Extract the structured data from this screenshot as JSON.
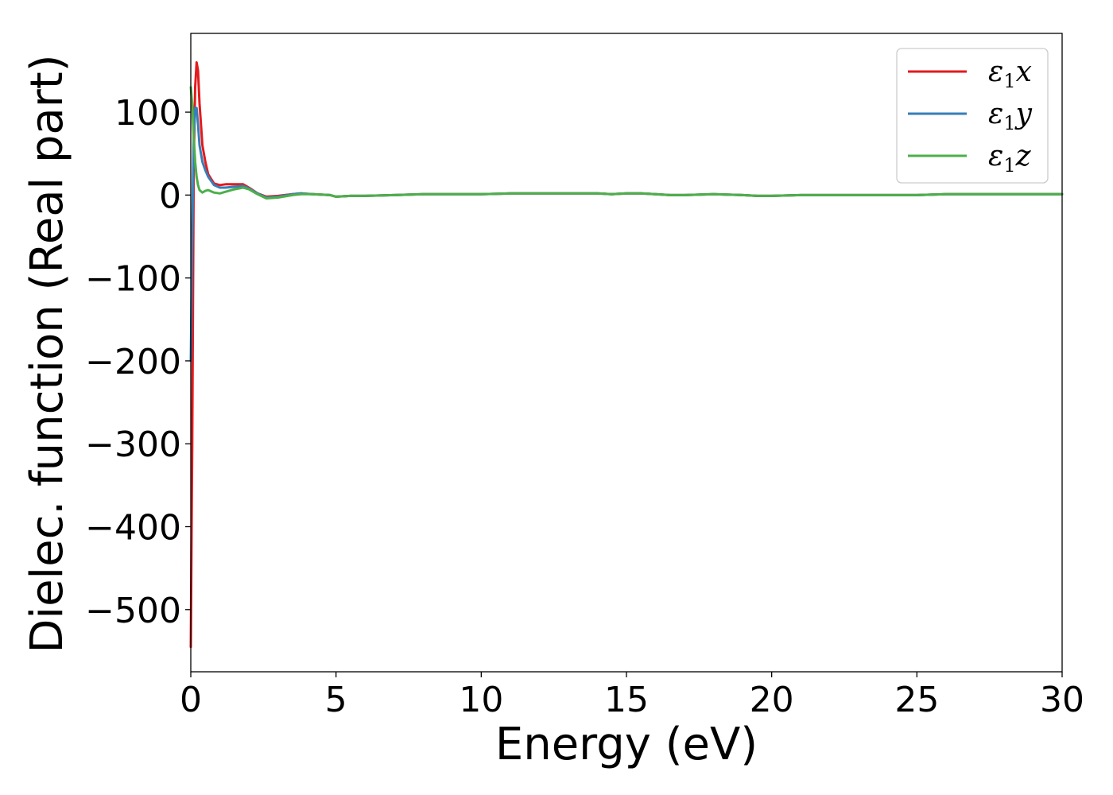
{
  "chart_data": {
    "type": "line",
    "title": "",
    "xlabel": "Energy (eV)",
    "ylabel": "Dielec. function (Real part)",
    "xlim": [
      0,
      30
    ],
    "ylim": [
      -575,
      195
    ],
    "xticks": [
      0,
      5,
      10,
      15,
      20,
      25,
      30
    ],
    "xtick_labels": [
      "0",
      "5",
      "10",
      "15",
      "20",
      "25",
      "30"
    ],
    "yticks": [
      100,
      0,
      -100,
      -200,
      -300,
      -400,
      -500
    ],
    "ytick_labels": [
      "100",
      "0",
      "−100",
      "−200",
      "−300",
      "−400",
      "−500"
    ],
    "grid": false,
    "legend_position": "top-right",
    "series": [
      {
        "name_main": "ε",
        "name_sub": "1",
        "name_axis": "x",
        "color": "#e41a1c",
        "x": [
          0.0,
          0.05,
          0.1,
          0.15,
          0.2,
          0.25,
          0.3,
          0.4,
          0.5,
          0.6,
          0.8,
          1.0,
          1.2,
          1.5,
          1.8,
          2.0,
          2.3,
          2.6,
          3.0,
          3.5,
          3.8,
          4.2,
          4.8,
          5.0,
          5.5,
          6.0,
          7.0,
          8.0,
          9.0,
          10.0,
          11.0,
          12.0,
          13.0,
          14.0,
          14.5,
          15.0,
          15.5,
          16.0,
          16.5,
          17.0,
          18.0,
          19.0,
          19.5,
          20.0,
          21.0,
          22.0,
          23.0,
          24.0,
          25.0,
          26.0,
          27.0,
          28.0,
          29.0,
          30.0
        ],
        "y": [
          -545,
          -300,
          40,
          130,
          160,
          150,
          110,
          60,
          40,
          25,
          14,
          12,
          13,
          13,
          13,
          9,
          2,
          -2,
          -1,
          1,
          2,
          1,
          0,
          -2,
          -1,
          -1,
          0,
          1,
          1,
          1,
          2,
          2,
          2,
          2,
          1,
          2,
          2,
          1,
          0,
          0,
          1,
          0,
          -1,
          -1,
          0,
          0,
          0,
          0,
          0,
          1,
          1,
          1,
          1,
          1
        ]
      },
      {
        "name_main": "ε",
        "name_sub": "1",
        "name_axis": "y",
        "color": "#377eb8",
        "x": [
          0.0,
          0.05,
          0.1,
          0.15,
          0.2,
          0.25,
          0.3,
          0.4,
          0.5,
          0.6,
          0.8,
          1.0,
          1.2,
          1.5,
          1.8,
          2.0,
          2.3,
          2.6,
          3.0,
          3.5,
          3.8,
          4.2,
          4.8,
          5.0,
          5.5,
          6.0,
          7.0,
          8.0,
          9.0,
          10.0,
          11.0,
          12.0,
          13.0,
          14.0,
          14.5,
          15.0,
          15.5,
          16.0,
          16.5,
          17.0,
          18.0,
          19.0,
          19.5,
          20.0,
          21.0,
          22.0,
          23.0,
          24.0,
          25.0,
          26.0,
          27.0,
          28.0,
          29.0,
          30.0
        ],
        "y": [
          -200,
          -50,
          70,
          105,
          105,
          85,
          60,
          40,
          30,
          22,
          12,
          9,
          9,
          10,
          11,
          8,
          2,
          -3,
          -2,
          1,
          2,
          1,
          0,
          -2,
          -1,
          -1,
          0,
          1,
          1,
          1,
          2,
          2,
          2,
          2,
          1,
          2,
          2,
          1,
          0,
          0,
          1,
          0,
          -1,
          -1,
          0,
          0,
          0,
          0,
          0,
          1,
          1,
          1,
          1,
          1
        ]
      },
      {
        "name_main": "ε",
        "name_sub": "1",
        "name_axis": "z",
        "color": "#4daf4a",
        "x": [
          0.0,
          0.05,
          0.1,
          0.15,
          0.2,
          0.25,
          0.3,
          0.4,
          0.5,
          0.6,
          0.8,
          1.0,
          1.2,
          1.5,
          1.8,
          2.0,
          2.3,
          2.6,
          3.0,
          3.5,
          3.8,
          4.2,
          4.8,
          5.0,
          5.5,
          6.0,
          7.0,
          8.0,
          9.0,
          10.0,
          11.0,
          12.0,
          13.0,
          14.0,
          14.5,
          15.0,
          15.5,
          16.0,
          16.5,
          17.0,
          18.0,
          19.0,
          19.5,
          20.0,
          21.0,
          22.0,
          23.0,
          24.0,
          25.0,
          26.0,
          27.0,
          28.0,
          29.0,
          30.0
        ],
        "y": [
          130,
          110,
          70,
          40,
          22,
          12,
          6,
          3,
          5,
          6,
          3,
          2,
          4,
          7,
          9,
          7,
          1,
          -4,
          -3,
          0,
          1,
          1,
          0,
          -2,
          -1,
          -1,
          0,
          1,
          1,
          1,
          2,
          2,
          2,
          2,
          1,
          2,
          2,
          1,
          0,
          0,
          1,
          0,
          -1,
          -1,
          0,
          0,
          0,
          0,
          0,
          1,
          1,
          1,
          1,
          1
        ]
      }
    ]
  }
}
